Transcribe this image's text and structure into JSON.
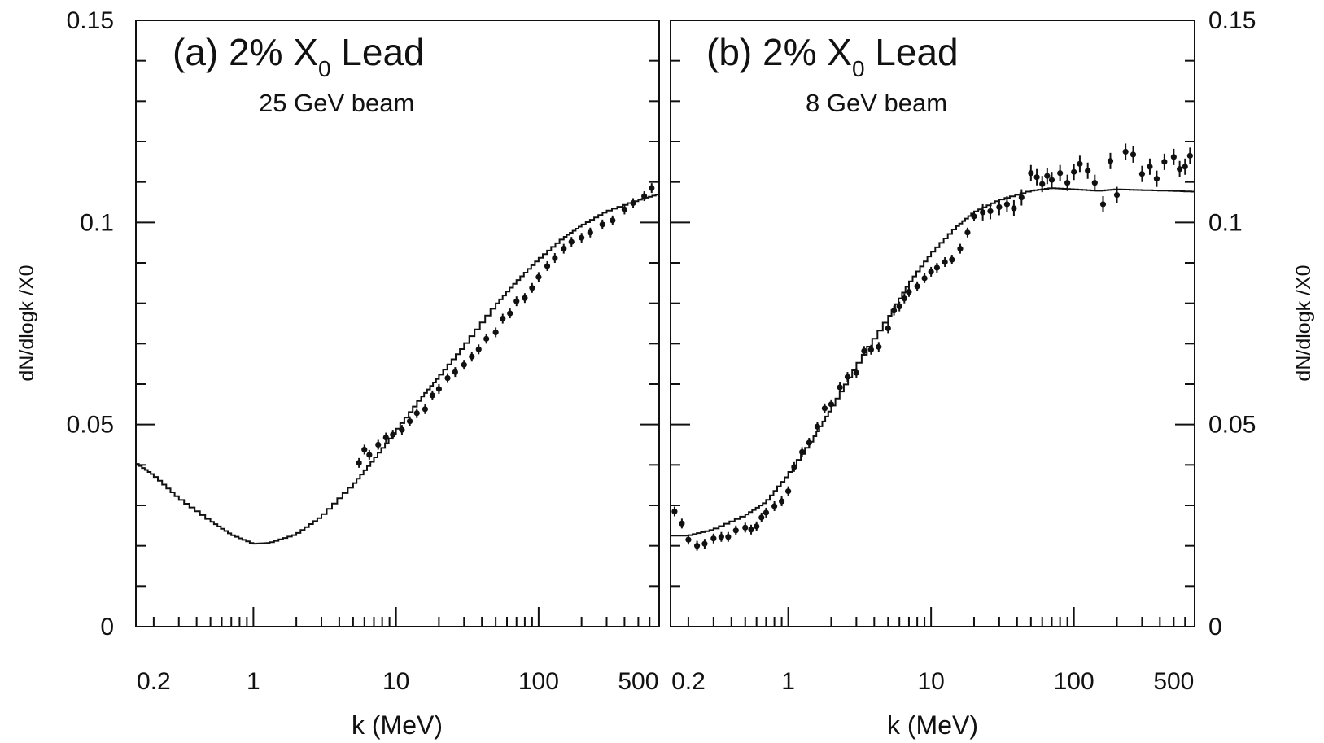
{
  "chart_data": [
    {
      "type": "scatter",
      "title": "(a) 2% X0 Lead",
      "title_main": "(a) 2% X",
      "title_sub": "0",
      "title_tail": " Lead",
      "subtitle": "25 GeV beam",
      "xlabel": "k (MeV)",
      "ylabel": "dN/dlogk /X0",
      "xscale": "log",
      "xlim": [
        0.15,
        700
      ],
      "ylim": [
        0,
        0.15
      ],
      "xticks": [
        0.2,
        1,
        10,
        100,
        500
      ],
      "xtick_labels": [
        "0.2",
        "1",
        "10",
        "100",
        "500"
      ],
      "yticks": [
        0,
        0.05,
        0.1,
        0.15
      ],
      "ytick_labels": [
        "0",
        "0.05",
        "0.1",
        "0.15"
      ],
      "series": [
        {
          "kind": "histogram",
          "x": [
            0.15,
            0.2,
            0.3,
            0.5,
            0.7,
            1,
            1.3,
            2,
            3,
            5,
            7,
            10,
            15,
            20,
            30,
            50,
            70,
            100,
            150,
            200,
            300,
            500,
            700
          ],
          "y": [
            0.0405,
            0.0375,
            0.0318,
            0.0262,
            0.0228,
            0.0205,
            0.0207,
            0.0228,
            0.0272,
            0.035,
            0.0413,
            0.0483,
            0.0565,
            0.0617,
            0.0693,
            0.0795,
            0.0853,
            0.0908,
            0.0962,
            0.0992,
            0.1027,
            0.1055,
            0.107
          ]
        },
        {
          "kind": "points",
          "x": [
            5.5,
            6,
            6.5,
            7.5,
            8.5,
            9.5,
            11,
            12.5,
            14,
            16,
            18,
            20,
            23,
            26,
            30,
            34,
            38,
            43,
            50,
            56,
            63,
            70,
            80,
            90,
            100,
            115,
            130,
            150,
            170,
            200,
            230,
            280,
            330,
            400,
            460,
            550,
            620
          ],
          "y": [
            0.0405,
            0.0438,
            0.0425,
            0.045,
            0.0468,
            0.0475,
            0.0487,
            0.0508,
            0.0528,
            0.0538,
            0.0572,
            0.0588,
            0.0615,
            0.063,
            0.0648,
            0.0668,
            0.0686,
            0.0712,
            0.0728,
            0.0762,
            0.0775,
            0.0805,
            0.0813,
            0.0838,
            0.0865,
            0.0892,
            0.0912,
            0.0935,
            0.0952,
            0.0962,
            0.0975,
            0.0995,
            0.1005,
            0.1032,
            0.1048,
            0.1065,
            0.1085
          ]
        }
      ]
    },
    {
      "type": "scatter",
      "title": "(b) 2% X0 Lead",
      "title_main": "(b) 2% X",
      "title_sub": "0",
      "title_tail": " Lead",
      "subtitle": "8 GeV beam",
      "xlabel": "k (MeV)",
      "ylabel": "dN/dlogk /X0",
      "xscale": "log",
      "xlim": [
        0.15,
        700
      ],
      "ylim": [
        0,
        0.15
      ],
      "xticks": [
        0.2,
        1,
        10,
        100,
        500
      ],
      "xtick_labels": [
        "0.2",
        "1",
        "10",
        "100",
        "500"
      ],
      "yticks": [
        0,
        0.05,
        0.1,
        0.15
      ],
      "ytick_labels": [
        "0",
        "0.05",
        "0.1",
        "0.15"
      ],
      "series": [
        {
          "kind": "histogram",
          "x": [
            0.15,
            0.2,
            0.3,
            0.5,
            0.7,
            1,
            1.5,
            2,
            3,
            5,
            7,
            10,
            15,
            20,
            30,
            50,
            70,
            100,
            150,
            200,
            300,
            500,
            700
          ],
          "y": [
            0.0225,
            0.0225,
            0.024,
            0.0275,
            0.0308,
            0.0375,
            0.0465,
            0.0538,
            0.0643,
            0.0762,
            0.0848,
            0.0922,
            0.0988,
            0.1025,
            0.1055,
            0.1078,
            0.1085,
            0.1082,
            0.1078,
            0.1082,
            0.108,
            0.1078,
            0.1076
          ]
        },
        {
          "kind": "points",
          "x": [
            0.16,
            0.18,
            0.2,
            0.23,
            0.26,
            0.3,
            0.34,
            0.38,
            0.43,
            0.5,
            0.55,
            0.6,
            0.65,
            0.7,
            0.8,
            0.9,
            1,
            1.1,
            1.25,
            1.4,
            1.6,
            1.8,
            2,
            2.3,
            2.6,
            3,
            3.4,
            3.8,
            4.3,
            5,
            5.5,
            6,
            6.5,
            7,
            8,
            9,
            10,
            11,
            12.5,
            14,
            16,
            18,
            20,
            23,
            26,
            30,
            34,
            38,
            43,
            50,
            55,
            60,
            65,
            70,
            80,
            90,
            100,
            110,
            125,
            140,
            160,
            180,
            200,
            230,
            260,
            300,
            340,
            380,
            430,
            500,
            550,
            600,
            650
          ],
          "y": [
            0.0285,
            0.0255,
            0.0215,
            0.02,
            0.0205,
            0.0218,
            0.0222,
            0.0222,
            0.0238,
            0.0245,
            0.024,
            0.0248,
            0.027,
            0.0282,
            0.0298,
            0.031,
            0.0335,
            0.0395,
            0.0432,
            0.0455,
            0.0495,
            0.054,
            0.055,
            0.0592,
            0.0618,
            0.0628,
            0.0682,
            0.0685,
            0.0692,
            0.0738,
            0.0782,
            0.0792,
            0.0812,
            0.0828,
            0.0842,
            0.0862,
            0.0878,
            0.0888,
            0.0902,
            0.0908,
            0.0935,
            0.0975,
            0.1015,
            0.1025,
            0.1028,
            0.1038,
            0.1045,
            0.1035,
            0.1062,
            0.1122,
            0.1112,
            0.1095,
            0.1115,
            0.1105,
            0.1122,
            0.1098,
            0.1125,
            0.1145,
            0.1128,
            0.1098,
            0.1045,
            0.1152,
            0.1068,
            0.1175,
            0.1168,
            0.112,
            0.1138,
            0.1108,
            0.115,
            0.1162,
            0.1132,
            0.1138,
            0.1165
          ]
        }
      ]
    }
  ]
}
